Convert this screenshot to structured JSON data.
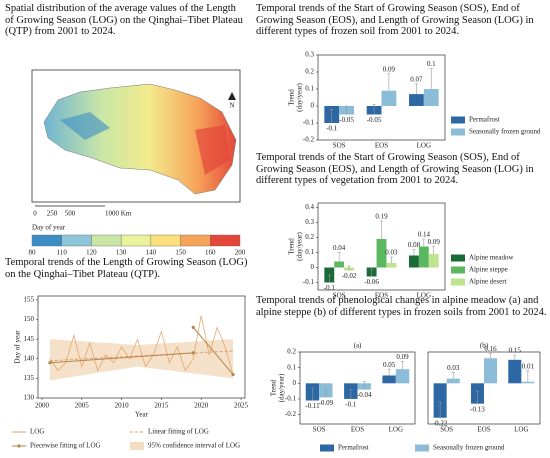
{
  "chart_data": [
    {
      "type": "map",
      "title": "Spatial distribution of the average values of the Length of Growing Season (LOG) on the Qinghai–Tibet Plateau (QTP) from 2001 to 2024.",
      "north": "N",
      "scale_labels": [
        "0",
        "250",
        "500",
        "1000 Km"
      ],
      "colorbar_label": "Day of year",
      "colorbar_ticks": [
        80,
        110,
        120,
        130,
        140,
        150,
        160,
        200
      ],
      "colors": [
        "#3c8dc4",
        "#8ec6d9",
        "#c9e6a6",
        "#eaf29b",
        "#fbe07a",
        "#f6a35a",
        "#e4473a"
      ]
    },
    {
      "type": "line",
      "title": "Temporal trends of the Length of Growing Season (LOG) on the Qinghai–Tibet Plateau (QTP).",
      "xlabel": "Year",
      "ylabel": "Day of year",
      "xlim": [
        1999.5,
        2025.5
      ],
      "xticks": [
        2000,
        2005,
        2010,
        2015,
        2020,
        2025
      ],
      "ylim": [
        130,
        156
      ],
      "yticks": [
        130,
        135,
        140,
        145,
        150,
        155
      ],
      "series": [
        {
          "name": "LOG",
          "style": "line",
          "color": "#e0a060",
          "x": [
            2001,
            2002,
            2003,
            2004,
            2005,
            2006,
            2007,
            2008,
            2009,
            2010,
            2011,
            2012,
            2013,
            2014,
            2015,
            2016,
            2017,
            2018,
            2019,
            2020,
            2021,
            2022,
            2023,
            2024
          ],
          "values": [
            140,
            137,
            139,
            146,
            138,
            144,
            137,
            141,
            139,
            143,
            140,
            145,
            138,
            141,
            147,
            139,
            143,
            137,
            140,
            151,
            141,
            148,
            143,
            136
          ]
        },
        {
          "name": "Linear fitting of LOG",
          "style": "dashed",
          "color": "#d9a070",
          "x": [
            2001,
            2024
          ],
          "values": [
            139.5,
            142
          ]
        },
        {
          "name": "Piecewise fitting of LOG",
          "style": "markers",
          "color": "#b8864a",
          "x": [
            2001,
            2019,
            2019,
            2019,
            2024
          ],
          "values": [
            139,
            141.5,
            null,
            148,
            136
          ]
        },
        {
          "name": "95% confidence interval of LOG",
          "style": "band",
          "color": "#f3dcc0",
          "x": [
            2001,
            2012,
            2024
          ],
          "lower": [
            134.5,
            138,
            135
          ],
          "upper": [
            145,
            143.5,
            145
          ]
        }
      ]
    },
    {
      "type": "bar",
      "title": "Temporal trends of the Start of Growing Season (SOS), End of Growing Season (EOS), and Length of Growing Season (LOG) in different types of frozen soil from 2001 to 2024.",
      "ylabel": [
        "Trend",
        "(day/year)"
      ],
      "categories": [
        "SOS",
        "EOS",
        "LOG"
      ],
      "ylim": [
        -0.2,
        0.3
      ],
      "yticks": [
        -0.2,
        -0.1,
        0,
        0.1,
        0.2,
        0.3
      ],
      "legend": "lower right",
      "series": [
        {
          "name": "Permafrost",
          "color": "#2e68a4",
          "values": [
            -0.1,
            -0.05,
            0.07
          ],
          "errors": [
            0.08,
            0.06,
            0.06
          ]
        },
        {
          "name": "Seasonally frozen ground",
          "color": "#8bbcd8",
          "values": [
            -0.05,
            0.09,
            0.1
          ],
          "errors": [
            0.05,
            0.1,
            0.12
          ]
        }
      ]
    },
    {
      "type": "bar",
      "title": "Temporal trends of the Start of Growing Season (SOS), End of Growing Season (EOS), and Length of Growing Season (LOG) in different types of vegetation from 2001 to 2024.",
      "ylabel": [
        "Trend",
        "(day/year)"
      ],
      "categories": [
        "SOS",
        "EOS",
        "LOG"
      ],
      "ylim": [
        -0.15,
        0.43
      ],
      "yticks": [
        -0.1,
        0,
        0.1,
        0.2,
        0.3,
        0.4
      ],
      "legend": "lower right",
      "series": [
        {
          "name": "Alpine meadow",
          "color": "#1b6a38",
          "values": [
            -0.1,
            -0.06,
            0.08
          ],
          "errors": [
            0.05,
            0.05,
            0.04
          ]
        },
        {
          "name": "Alpine steppe",
          "color": "#5cb860",
          "values": [
            0.04,
            0.19,
            0.14
          ],
          "errors": [
            0.06,
            0.12,
            0.05
          ]
        },
        {
          "name": "Alpine desert",
          "color": "#bfe38f",
          "values": [
            -0.02,
            0.03,
            0.09
          ],
          "errors": [
            0.03,
            0.04,
            0.05
          ]
        }
      ]
    },
    {
      "type": "bar",
      "title": "Temporal trends of phenological changes in alpine meadow (a) and alpine steppe (b) of different types in frozen soils from 2001 to 2024.",
      "subtitle": "(a)",
      "ylabel": [
        "Trend",
        "(day/year)"
      ],
      "categories": [
        "SOS",
        "EOS",
        "LOG"
      ],
      "ylim": [
        -0.26,
        0.2
      ],
      "yticks": [
        -0.2,
        -0.1,
        0,
        0.1,
        0.2
      ],
      "legend": "bottom",
      "series": [
        {
          "name": "Permafrost",
          "color": "#2e68a4",
          "values": [
            -0.11,
            -0.1,
            0.05
          ],
          "errors": [
            0.08,
            0.06,
            0.04
          ]
        },
        {
          "name": "Seasonally frozen ground",
          "color": "#8bbcd8",
          "values": [
            -0.09,
            -0.04,
            0.09
          ],
          "errors": [
            0.06,
            0.05,
            0.05
          ]
        }
      ]
    },
    {
      "type": "bar",
      "subtitle": "(b)",
      "categories": [
        "SOS",
        "EOS",
        "LOG"
      ],
      "ylim": [
        -0.26,
        0.2
      ],
      "series": [
        {
          "color": "#2e68a4",
          "values": [
            -0.22,
            -0.13,
            0.15
          ],
          "errors": [
            0.1,
            0.08,
            0.03
          ]
        },
        {
          "color": "#8bbcd8",
          "values": [
            0.03,
            0.16,
            0.01
          ],
          "errors": [
            0.04,
            0.03,
            0.07
          ]
        }
      ]
    }
  ]
}
